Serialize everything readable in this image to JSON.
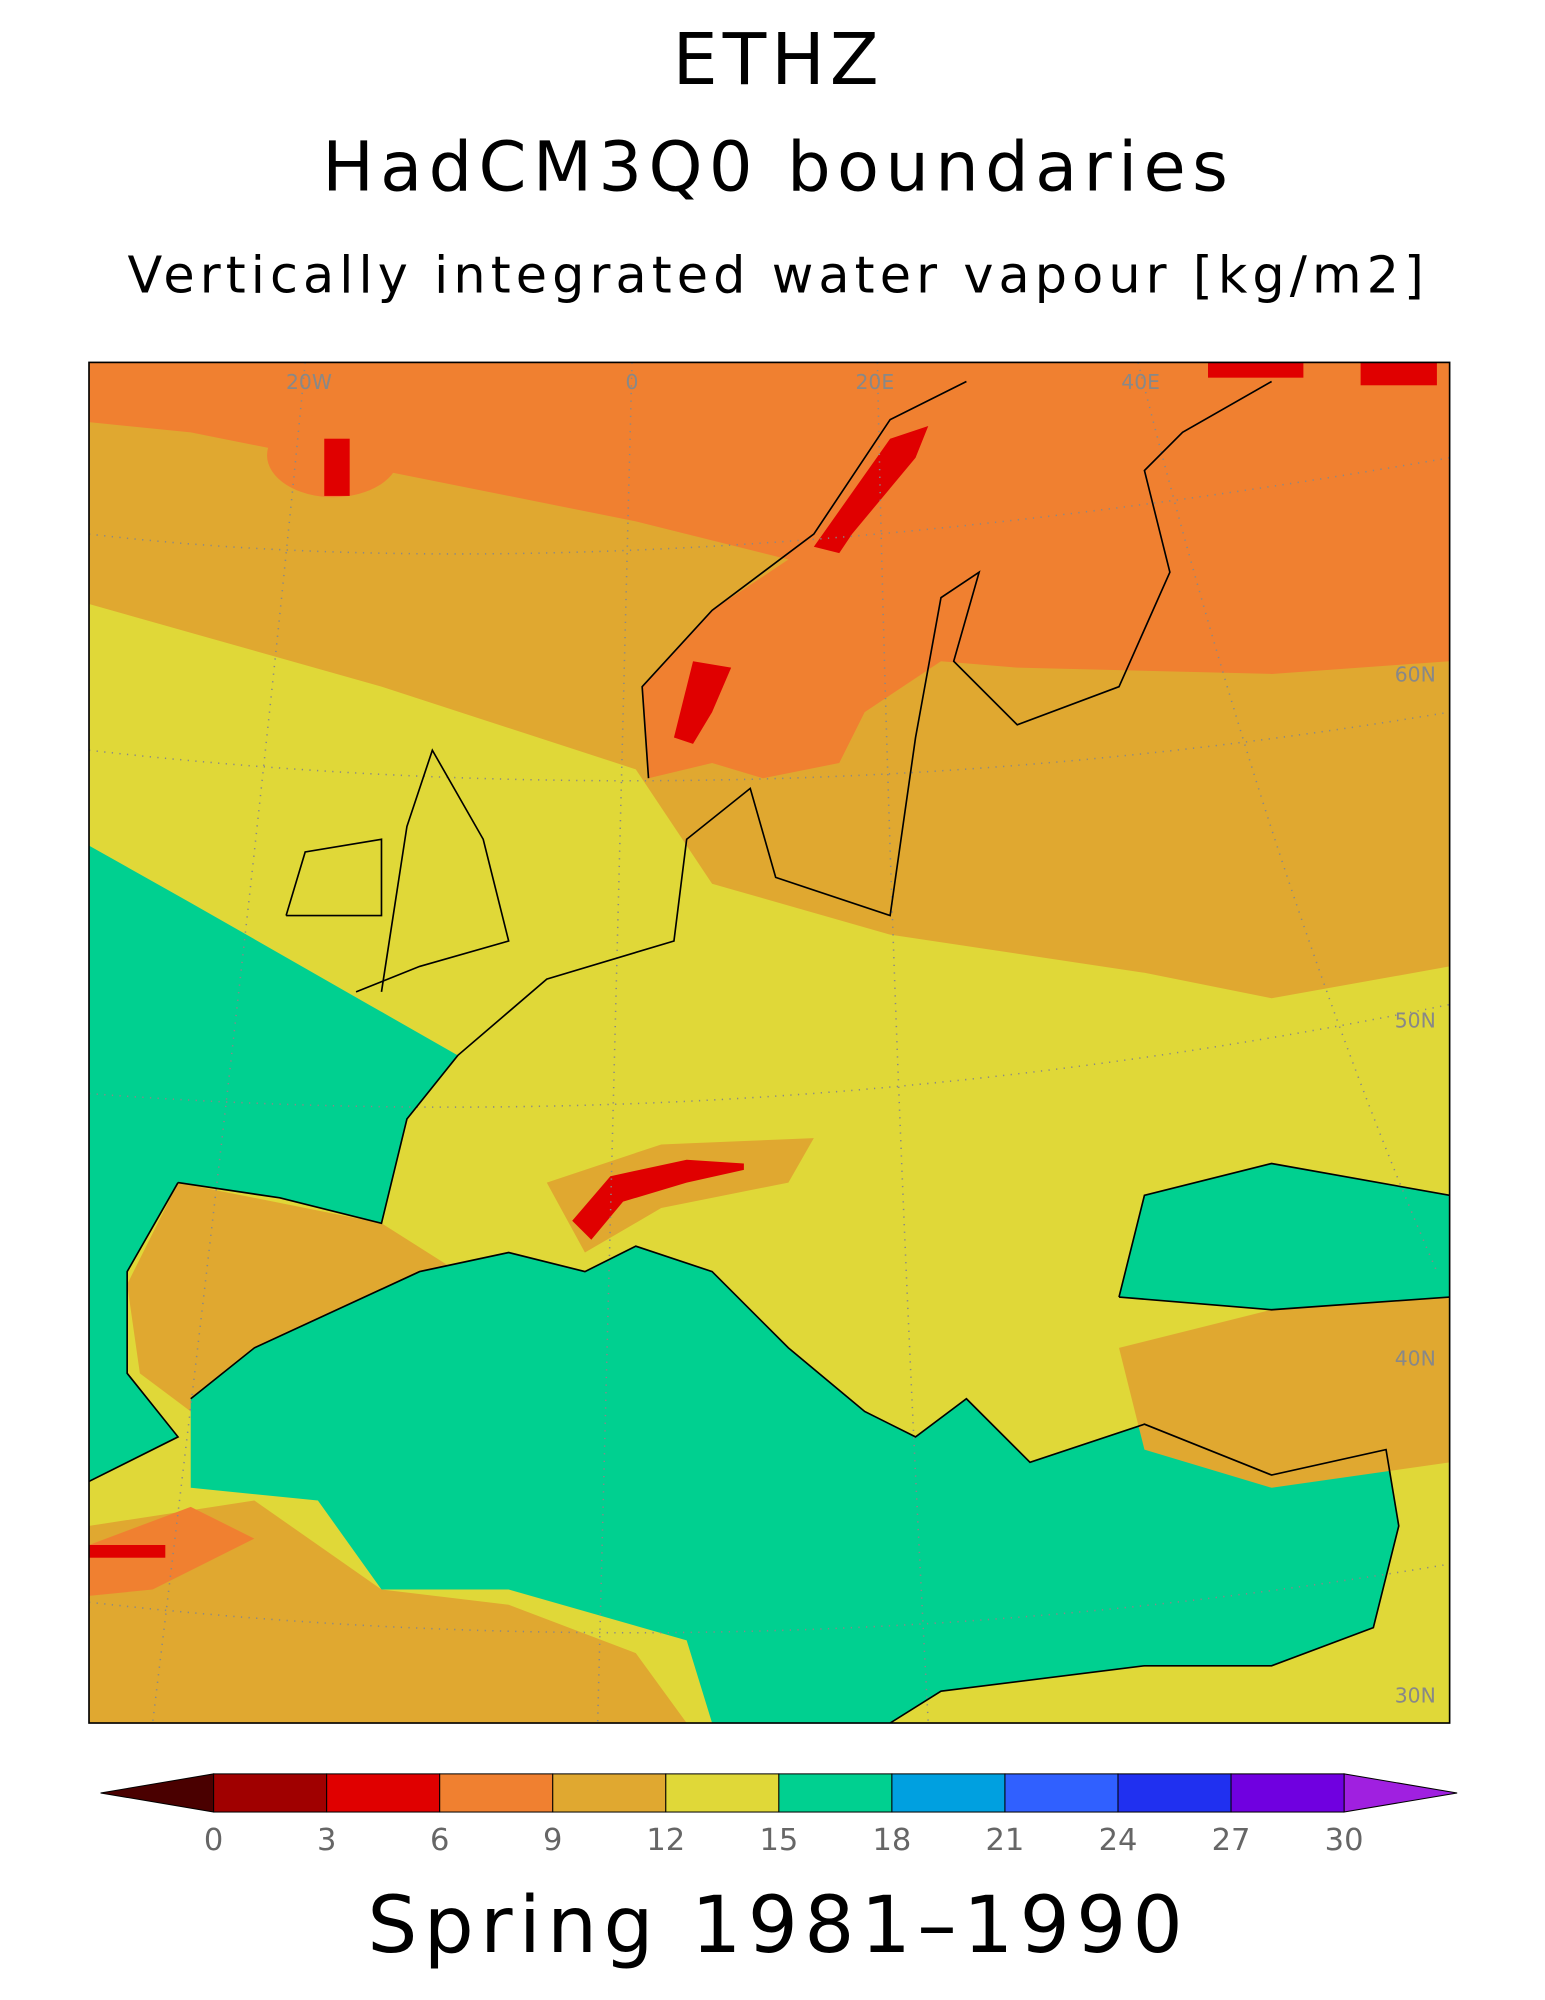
{
  "header": {
    "title": "ETHZ",
    "subtitle": "HadCM3Q0 boundaries",
    "variable": "Vertically integrated water vapour [kg/m2]"
  },
  "map": {
    "lon_labels": [
      "20W",
      "0",
      "20E",
      "40E"
    ],
    "lat_labels": [
      "60N",
      "50N",
      "40N",
      "30N"
    ]
  },
  "colorbar": {
    "ticks": [
      0,
      3,
      6,
      9,
      12,
      15,
      18,
      21,
      24,
      27,
      30
    ],
    "colors": [
      "#a00000",
      "#e00000",
      "#f08030",
      "#e0a830",
      "#e0d838",
      "#00d090",
      "#00a0e0",
      "#3060ff",
      "#2030f0",
      "#7000e0"
    ],
    "under_color": "#4a0000",
    "over_color": "#a020e0"
  },
  "footer": "Spring 1981–1990"
}
